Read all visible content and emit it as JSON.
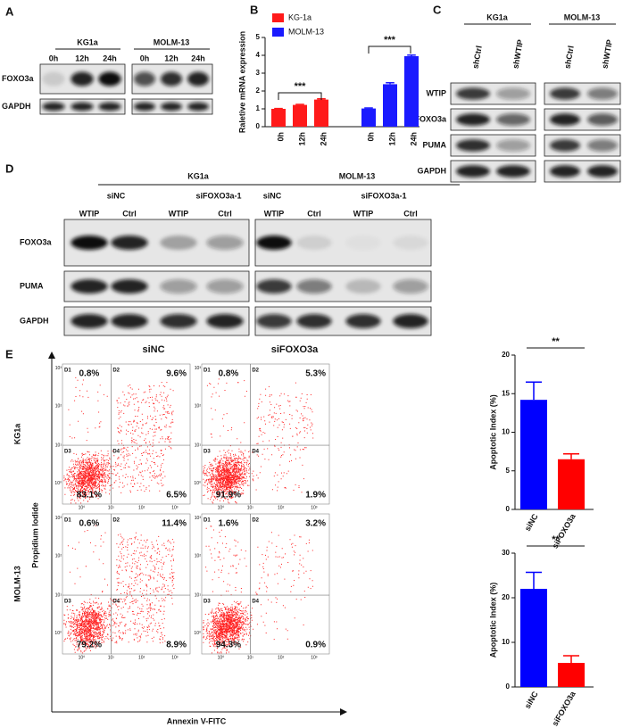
{
  "panels": [
    "A",
    "B",
    "C",
    "D",
    "E"
  ],
  "blot_a": {
    "groups": [
      "KG1a",
      "MOLM-13"
    ],
    "lanes": [
      "0h",
      "12h",
      "24h"
    ],
    "rows": [
      "FOXO3a",
      "GAPDH"
    ]
  },
  "blot_c": {
    "groups": [
      "KG1a",
      "MOLM-13"
    ],
    "lanes": [
      "shCtrl",
      "shWTIP"
    ],
    "rows": [
      "WTIP",
      "FOXO3a",
      "PUMA",
      "GAPDH"
    ]
  },
  "blot_d": {
    "groups": [
      "KG1a",
      "MOLM-13"
    ],
    "conditions": [
      "siNC",
      "siFOXO3a-1"
    ],
    "lanes": [
      "WTIP",
      "Ctrl"
    ],
    "rows": [
      "FOXO3a",
      "PUMA",
      "GAPDH"
    ]
  },
  "flow": {
    "columns": [
      "siNC",
      "siFOXO3a"
    ],
    "rows": [
      "KG1a",
      "MOLM-13"
    ],
    "y_label": "Propidium Iodide",
    "x_label": "Annexin V-FITC",
    "quadrants": [
      "D1",
      "D2",
      "D3",
      "D4"
    ],
    "ticks": [
      "10⁰",
      "10¹",
      "10²",
      "10³"
    ],
    "plots": [
      [
        "0.8%",
        "9.6%",
        "83.1%",
        "6.5%"
      ],
      [
        "0.8%",
        "5.3%",
        "91.9%",
        "1.9%"
      ],
      [
        "0.6%",
        "11.4%",
        "79.2%",
        "8.9%"
      ],
      [
        "1.6%",
        "3.2%",
        "94.3%",
        "0.9%"
      ]
    ]
  },
  "chart_data": [
    {
      "type": "bar",
      "ylabel": "Raletive mRNA expression",
      "categories": [
        "0h",
        "12h",
        "24h",
        "0h",
        "12h",
        "24h"
      ],
      "series": [
        {
          "name": "KG-1a",
          "color": "#ff1a1a",
          "values": [
            1.0,
            1.22,
            1.52,
            null,
            null,
            null
          ],
          "errors": [
            0.02,
            0.03,
            0.04,
            null,
            null,
            null
          ]
        },
        {
          "name": "MOLM-13",
          "color": "#1a1aff",
          "values": [
            null,
            null,
            null,
            1.02,
            2.38,
            3.95
          ],
          "errors": [
            null,
            null,
            null,
            0.03,
            0.08,
            0.06
          ]
        }
      ],
      "ylim": [
        0,
        5
      ],
      "yticks": [
        0,
        1,
        2,
        3,
        4,
        5
      ],
      "annotations": [
        "***",
        "***"
      ]
    },
    {
      "type": "bar",
      "ylabel": "Apoptotic Index (%)",
      "categories": [
        "siNC",
        "siFOXO3a"
      ],
      "values": [
        14.2,
        6.5
      ],
      "errors": [
        2.3,
        0.7
      ],
      "colors": [
        "#0000ff",
        "#ff0000"
      ],
      "ylim": [
        0,
        20
      ],
      "yticks": [
        0,
        5,
        10,
        15,
        20
      ],
      "annotations": [
        "**"
      ]
    },
    {
      "type": "bar",
      "ylabel": "Apoptotic Index (%)",
      "categories": [
        "siNC",
        "siFOXO3a"
      ],
      "values": [
        22.0,
        5.4
      ],
      "errors": [
        3.7,
        1.6
      ],
      "colors": [
        "#0000ff",
        "#ff0000"
      ],
      "ylim": [
        0,
        30
      ],
      "yticks": [
        0,
        10,
        20,
        30
      ],
      "annotations": [
        "**"
      ]
    }
  ]
}
